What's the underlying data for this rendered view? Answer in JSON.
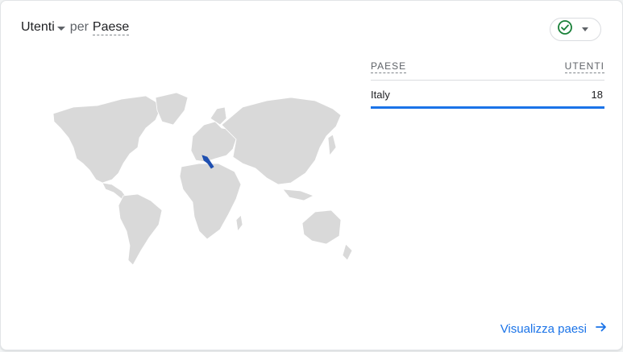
{
  "card": {
    "metric_label": "Utenti",
    "connector": "per",
    "dimension_label": "Paese"
  },
  "status_icon": "check-circle-icon",
  "table": {
    "col_country": "PAESE",
    "col_users": "UTENTI",
    "rows": [
      {
        "country": "Italy",
        "users": "18"
      }
    ]
  },
  "footer": {
    "link_label": "Visualizza paesi"
  },
  "colors": {
    "accent": "#1a73e8",
    "land": "#d9d9d9",
    "highlight": "#1f4fb0",
    "success": "#188038"
  }
}
